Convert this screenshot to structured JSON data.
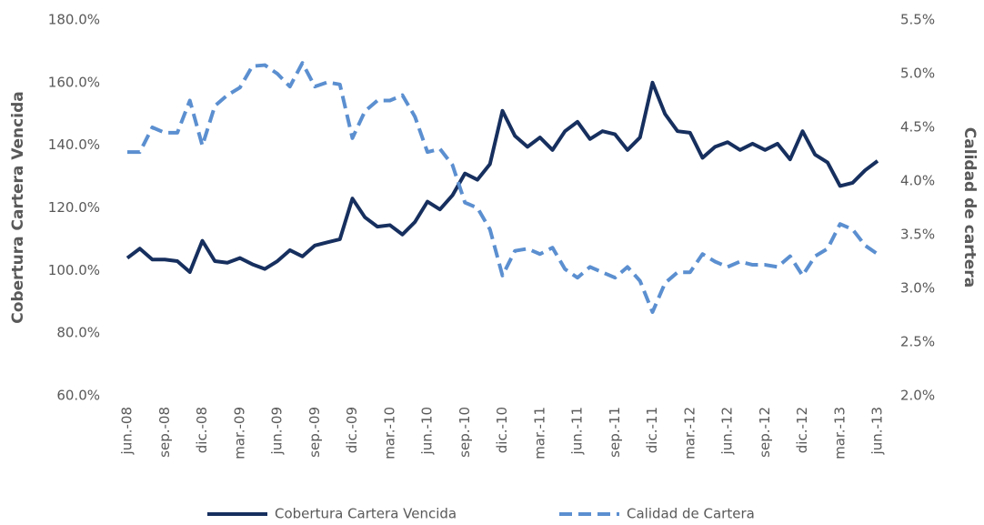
{
  "chart_data": {
    "type": "line",
    "y_label": "Cobertura Cartera Vencida",
    "y2_label": "Calidad de cartera",
    "categories": [
      "jun.-08",
      null,
      null,
      "sep.-08",
      null,
      null,
      "dic.-08",
      null,
      null,
      "mar.-09",
      null,
      null,
      "jun.-09",
      null,
      null,
      "sep.-09",
      null,
      null,
      "dic.-09",
      null,
      null,
      "mar.-10",
      null,
      null,
      "jun.-10",
      null,
      null,
      "sep.-10",
      null,
      null,
      "dic.-10",
      null,
      null,
      "mar.-11",
      null,
      null,
      "jun.-11",
      null,
      null,
      "sep.-11",
      null,
      null,
      "dic.-11",
      null,
      null,
      "mar.-12",
      null,
      null,
      "jun.-12",
      null,
      null,
      "sep.-12",
      null,
      null,
      "dic.-12",
      null,
      null,
      "mar.-13",
      null,
      null,
      "jun.-13"
    ],
    "series": [
      {
        "name": "Cobertura Cartera Vencida",
        "color": "#162f5e",
        "axis": "y",
        "values": [
          104,
          107,
          103.5,
          103.5,
          103,
          99.5,
          109.5,
          103,
          102.5,
          104,
          102,
          100.5,
          103,
          106.5,
          104.5,
          108,
          109,
          110,
          123,
          117,
          114,
          114.5,
          111.5,
          115.5,
          122,
          119.5,
          124,
          131,
          129,
          134,
          151,
          143,
          139.5,
          142.5,
          138.5,
          144.5,
          147.5,
          142,
          144.5,
          143.5,
          138.5,
          142.5,
          160,
          150,
          144.5,
          144,
          136,
          139.5,
          141,
          138.5,
          140.5,
          138.5,
          140.5,
          135.5,
          144.5,
          137,
          134.5,
          127,
          128,
          132,
          135
        ]
      },
      {
        "name": "Calidad de Cartera",
        "color": "#5b8fd0",
        "axis": "y2",
        "dashed": true,
        "values": [
          4.27,
          4.27,
          4.5,
          4.45,
          4.45,
          4.75,
          4.33,
          4.7,
          4.8,
          4.87,
          5.07,
          5.08,
          5.0,
          4.88,
          5.1,
          4.88,
          4.92,
          4.9,
          4.4,
          4.65,
          4.75,
          4.75,
          4.8,
          4.6,
          4.27,
          4.3,
          4.15,
          3.8,
          3.75,
          3.55,
          3.12,
          3.35,
          3.37,
          3.32,
          3.38,
          3.18,
          3.1,
          3.2,
          3.15,
          3.1,
          3.2,
          3.07,
          2.78,
          3.05,
          3.15,
          3.15,
          3.32,
          3.25,
          3.2,
          3.25,
          3.22,
          3.22,
          3.2,
          3.3,
          3.12,
          3.3,
          3.37,
          3.6,
          3.55,
          3.4,
          3.32
        ]
      }
    ],
    "ylim": [
      60,
      180
    ],
    "yticks": [
      {
        "value": 60,
        "label": "60.0%"
      },
      {
        "value": 80,
        "label": "80.0%"
      },
      {
        "value": 100,
        "label": "100.0%"
      },
      {
        "value": 120,
        "label": "120.0%"
      },
      {
        "value": 140,
        "label": "140.0%"
      },
      {
        "value": 160,
        "label": "160.0%"
      },
      {
        "value": 180,
        "label": "180.0%"
      }
    ],
    "y2lim": [
      2.0,
      5.5
    ],
    "y2ticks": [
      {
        "value": 2.0,
        "label": "2.0%"
      },
      {
        "value": 2.5,
        "label": "2.5%"
      },
      {
        "value": 3.0,
        "label": "3.0%"
      },
      {
        "value": 3.5,
        "label": "3.5%"
      },
      {
        "value": 4.0,
        "label": "4.0%"
      },
      {
        "value": 4.5,
        "label": "4.5%"
      },
      {
        "value": 5.0,
        "label": "5.0%"
      },
      {
        "value": 5.5,
        "label": "5.5%"
      }
    ]
  }
}
